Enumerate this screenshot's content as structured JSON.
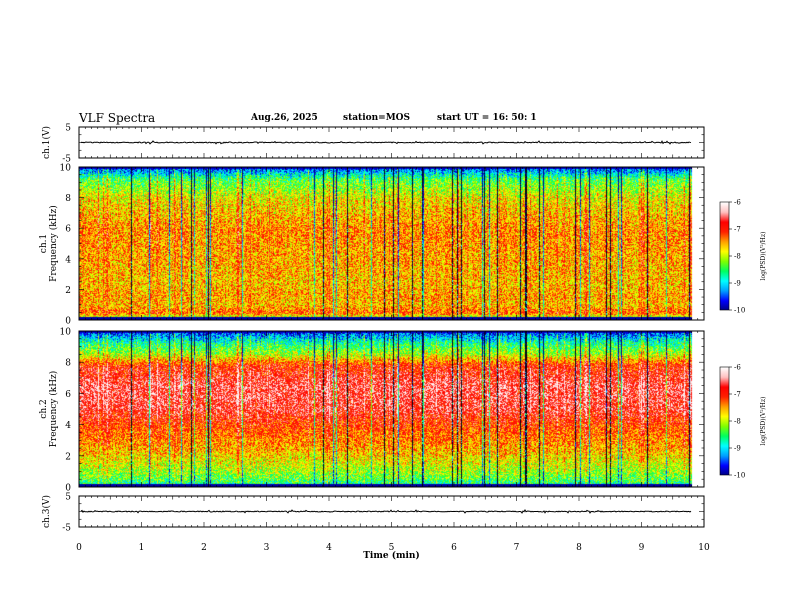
{
  "header": {
    "title": "VLF Spectra",
    "date": "Aug.26, 2025",
    "station": "station=MOS",
    "start": "start  UT =   16: 50: 1"
  },
  "chart_data": [
    {
      "type": "line",
      "name": "ch1-waveform",
      "ylabel": "ch.1(V)",
      "ylim": [
        -5,
        5
      ],
      "yticks": [
        "5",
        "-5"
      ],
      "x_range": [
        0,
        9.8
      ],
      "baseline": 0
    },
    {
      "type": "heatmap",
      "name": "ch1-spectrogram",
      "ylabel_line1": "ch.1",
      "ylabel_line2": "Frequency (kHz)",
      "ylim": [
        0,
        10
      ],
      "yticks": [
        "0",
        "2",
        "4",
        "6",
        "8",
        "10"
      ],
      "x_range": [
        0,
        9.8
      ],
      "band_profile": [
        {
          "f": 0,
          "v": -8.6
        },
        {
          "f": 0.5,
          "v": -7.2
        },
        {
          "f": 1.0,
          "v": -7.6
        },
        {
          "f": 1.6,
          "v": -7.5
        },
        {
          "f": 2.5,
          "v": -7.6
        },
        {
          "f": 4.0,
          "v": -7.5
        },
        {
          "f": 6.0,
          "v": -7.4
        },
        {
          "f": 8.0,
          "v": -7.8
        },
        {
          "f": 9.2,
          "v": -8.4
        },
        {
          "f": 10,
          "v": -9.6
        }
      ]
    },
    {
      "type": "heatmap",
      "name": "ch2-spectrogram",
      "ylabel_line1": "ch.2",
      "ylabel_line2": "Frequency (kHz)",
      "ylim": [
        0,
        10
      ],
      "yticks": [
        "0",
        "2",
        "4",
        "6",
        "8",
        "10"
      ],
      "x_range": [
        0,
        9.8
      ],
      "band_profile": [
        {
          "f": 0,
          "v": -8.8
        },
        {
          "f": 0.6,
          "v": -8.3
        },
        {
          "f": 1.2,
          "v": -8.0
        },
        {
          "f": 2.5,
          "v": -7.5
        },
        {
          "f": 4.0,
          "v": -7.1
        },
        {
          "f": 5.0,
          "v": -6.7
        },
        {
          "f": 6.5,
          "v": -6.6
        },
        {
          "f": 7.8,
          "v": -7.0
        },
        {
          "f": 8.5,
          "v": -8.0
        },
        {
          "f": 9.3,
          "v": -8.7
        },
        {
          "f": 10,
          "v": -9.6
        }
      ]
    },
    {
      "type": "line",
      "name": "ch3-waveform",
      "ylabel": "ch.3(V)",
      "ylim": [
        -5,
        5
      ],
      "yticks": [
        "5",
        "-5"
      ],
      "x_range": [
        0,
        9.8
      ],
      "baseline": 0
    }
  ],
  "xaxis": {
    "label": "Time  (min)",
    "range": [
      0,
      10
    ],
    "ticks": [
      "0",
      "1",
      "2",
      "3",
      "4",
      "5",
      "6",
      "7",
      "8",
      "9",
      "10"
    ]
  },
  "colorbars": [
    {
      "ticks": [
        "-6",
        "-7",
        "-8",
        "-9",
        "-10"
      ],
      "range": [
        -10,
        -6
      ],
      "label": "log(PSD)(V²/Hz)"
    },
    {
      "ticks": [
        "-6",
        "-7",
        "-8",
        "-9",
        "-10"
      ],
      "range": [
        -10,
        -6
      ],
      "label": "log(PSD)(V²/Hz)"
    }
  ],
  "colormap": [
    "#00007f",
    "#0000ff",
    "#00a0ff",
    "#00ffff",
    "#00ff60",
    "#80ff00",
    "#ffff00",
    "#ffa000",
    "#ff2000",
    "#ff0000",
    "#ffc0c0",
    "#ffffff"
  ]
}
